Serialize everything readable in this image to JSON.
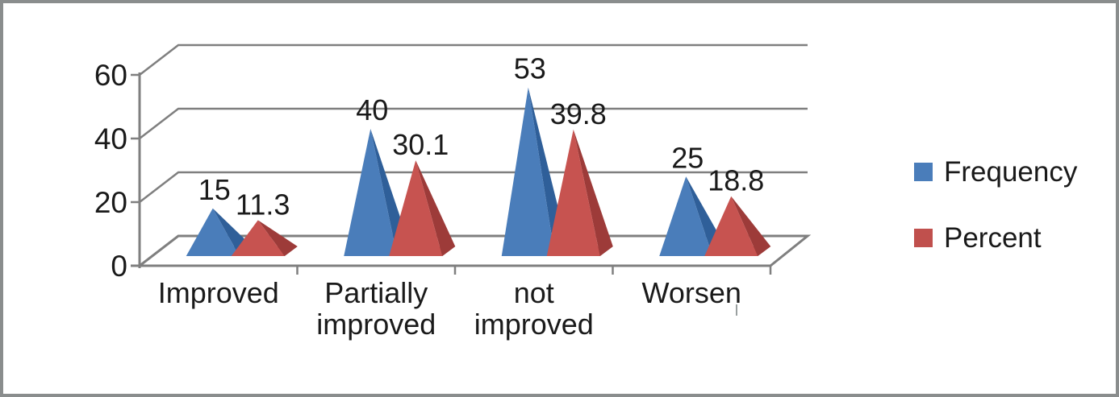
{
  "window": {
    "background": "#ffffff",
    "frame_color": "#8a8d8d"
  },
  "chart_data": {
    "type": "bar",
    "style": "3d-pyramid",
    "title": "",
    "xlabel": "",
    "ylabel": "",
    "categories": [
      "Improved",
      "Partially improved",
      "not improved",
      "Worsen"
    ],
    "category_label_lines": [
      [
        "Improved"
      ],
      [
        "Partially",
        "improved"
      ],
      [
        "not",
        "improved"
      ],
      [
        "Worsen"
      ]
    ],
    "series": [
      {
        "name": "Frequency",
        "values": [
          15,
          40,
          53,
          25
        ],
        "data_labels": [
          "15",
          "40",
          "53",
          "25"
        ],
        "color": "#4a7dba",
        "color_dark": "#2f5f99"
      },
      {
        "name": "Percent",
        "values": [
          11.3,
          30.1,
          39.8,
          18.8
        ],
        "data_labels": [
          "11.3",
          "30.1",
          "39.8",
          "18.8"
        ],
        "color": "#c75350",
        "color_dark": "#9d3b39"
      }
    ],
    "y_axis": {
      "tick_labels": [
        "0",
        "20",
        "40",
        "60"
      ],
      "tick_values": [
        0,
        20,
        40,
        60
      ],
      "range": [
        0,
        60
      ]
    },
    "grid": true,
    "legend_position": "right",
    "axis_color": "#7f7f7f",
    "text_color": "#1a1a1a"
  },
  "legend": {
    "items": [
      {
        "label": "Frequency",
        "color": "#4a7dba"
      },
      {
        "label": "Percent",
        "color": "#c0504d"
      }
    ]
  }
}
